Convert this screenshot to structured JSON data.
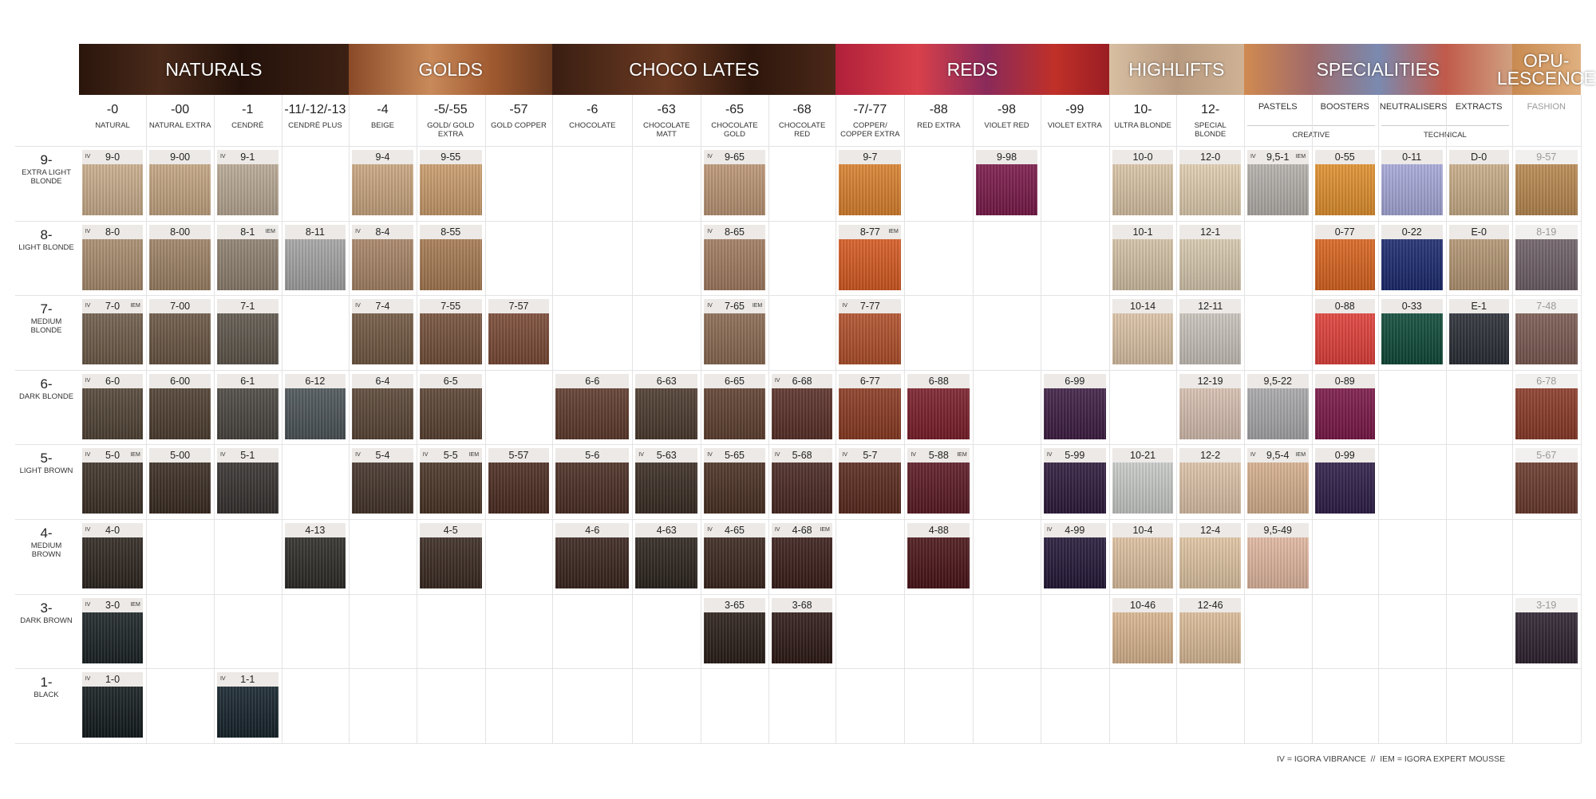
{
  "groups": [
    {
      "name": "NATURALS",
      "columns": [
        {
          "code": "-0",
          "name": "NATURAL"
        },
        {
          "code": "-00",
          "name": "NATURAL EXTRA"
        },
        {
          "code": "-1",
          "name": "CENDRÉ"
        },
        {
          "code": "-11/-12/-13",
          "name": "CENDRÉ PLUS"
        }
      ]
    },
    {
      "name": "GOLDS",
      "columns": [
        {
          "code": "-4",
          "name": "BEIGE"
        },
        {
          "code": "-5/-55",
          "name": "GOLD/ GOLD EXTRA"
        },
        {
          "code": "-57",
          "name": "GOLD COPPER"
        }
      ]
    },
    {
      "name": "CHOCO LATES",
      "columns": [
        {
          "code": "-6",
          "name": "CHOCOLATE"
        },
        {
          "code": "-63",
          "name": "CHOCOLATE MATT"
        },
        {
          "code": "-65",
          "name": "CHOCOLATE GOLD"
        },
        {
          "code": "-68",
          "name": "CHOCOLATE RED"
        }
      ]
    },
    {
      "name": "REDS",
      "columns": [
        {
          "code": "-7/-77",
          "name": "COPPER/ COPPER EXTRA"
        },
        {
          "code": "-88",
          "name": "RED EXTRA"
        },
        {
          "code": "-98",
          "name": "VIOLET RED"
        },
        {
          "code": "-99",
          "name": "VIOLET EXTRA"
        }
      ]
    },
    {
      "name": "HIGHLIFTS",
      "columns": [
        {
          "code": "10-",
          "name": "ULTRA BLONDE"
        },
        {
          "code": "12-",
          "name": "SPECIAL BLONDE"
        }
      ]
    },
    {
      "name": "SPECIALITIES",
      "subgroups": [
        {
          "name": "CREATIVE",
          "columns": [
            {
              "name": "PASTELS"
            },
            {
              "name": "BOOSTERS"
            }
          ]
        },
        {
          "name": "TECHNICAL",
          "columns": [
            {
              "name": "NEUTRALISERS"
            },
            {
              "name": "EXTRACTS"
            }
          ]
        }
      ]
    },
    {
      "name": "OPU-LESCENCE",
      "columns": [
        {
          "name": "FASHION"
        }
      ]
    }
  ],
  "rows": [
    {
      "level": "9-",
      "name": "EXTRA LIGHT BLONDE",
      "cells": [
        {
          "label": "9-0",
          "tags": [
            "IV"
          ],
          "color": "#c9ad8c"
        },
        {
          "label": "9-00",
          "color": "#c4a582"
        },
        {
          "label": "9-1",
          "tags": [
            "IV"
          ],
          "color": "#b8a894"
        },
        null,
        {
          "label": "9-4",
          "color": "#c9a680"
        },
        {
          "label": "9-55",
          "color": "#c99c6c"
        },
        null,
        null,
        null,
        {
          "label": "9-65",
          "tags": [
            "IV"
          ],
          "color": "#bb9575"
        },
        null,
        {
          "label": "9-7",
          "color": "#d9812e"
        },
        null,
        {
          "label": "9-98",
          "color": "#7a1a4a"
        },
        null,
        {
          "label": "10-0",
          "color": "#d9c4a6"
        },
        {
          "label": "12-0",
          "color": "#e0cdb0"
        },
        {
          "label": "9,5-1",
          "tags": [
            "IV",
            "IEM"
          ],
          "color": "#b4b0ab"
        },
        {
          "label": "0-55",
          "color": "#e0902e"
        },
        {
          "label": "0-11",
          "color": "#a6a8d8"
        },
        {
          "label": "D-0",
          "color": "#c8ad88"
        },
        {
          "label": "9-57",
          "color": "#b88850"
        }
      ]
    },
    {
      "level": "8-",
      "name": "LIGHT BLONDE",
      "cells": [
        {
          "label": "8-0",
          "tags": [
            "IV"
          ],
          "color": "#a88c6e"
        },
        {
          "label": "8-00",
          "color": "#9e8266"
        },
        {
          "label": "8-1",
          "tags": [
            "IEM"
          ],
          "color": "#8e8070"
        },
        {
          "label": "8-11",
          "color": "#a4a4a4"
        },
        {
          "label": "8-4",
          "tags": [
            "IV"
          ],
          "color": "#a78466"
        },
        {
          "label": "8-55",
          "color": "#a67a52"
        },
        null,
        null,
        null,
        {
          "label": "8-65",
          "tags": [
            "IV"
          ],
          "color": "#a17b60"
        },
        null,
        {
          "label": "8-77",
          "tags": [
            "IEM"
          ],
          "color": "#d55a22"
        },
        null,
        null,
        null,
        {
          "label": "10-1",
          "color": "#d3c1a5"
        },
        {
          "label": "12-1",
          "color": "#d6c8ae"
        },
        null,
        {
          "label": "0-77",
          "color": "#d86420"
        },
        {
          "label": "0-22",
          "color": "#1c2a6e"
        },
        {
          "label": "E-0",
          "color": "#b49674"
        },
        {
          "label": "8-19",
          "color": "#6e6068"
        }
      ]
    },
    {
      "level": "7-",
      "name": "MEDIUM BLONDE",
      "cells": [
        {
          "label": "7-0",
          "tags": [
            "IV",
            "IEM"
          ],
          "color": "#6e5c4a"
        },
        {
          "label": "7-00",
          "color": "#6a5644"
        },
        {
          "label": "7-1",
          "color": "#5e564c"
        },
        null,
        {
          "label": "7-4",
          "tags": [
            "IV"
          ],
          "color": "#715842"
        },
        {
          "label": "7-55",
          "color": "#74503a"
        },
        {
          "label": "7-57",
          "color": "#7a4a36"
        },
        null,
        null,
        {
          "label": "7-65",
          "tags": [
            "IV",
            "IEM"
          ],
          "color": "#8a6a52"
        },
        null,
        {
          "label": "7-77",
          "tags": [
            "IV"
          ],
          "color": "#b0502a"
        },
        null,
        null,
        null,
        {
          "label": "10-14",
          "color": "#dbc3a6"
        },
        {
          "label": "12-11",
          "color": "#c8c2ba"
        },
        null,
        {
          "label": "0-88",
          "color": "#e0403a"
        },
        {
          "label": "0-33",
          "color": "#0f4a38"
        },
        {
          "label": "E-1",
          "color": "#2a2e36"
        },
        {
          "label": "7-48",
          "color": "#7a5a52"
        }
      ]
    },
    {
      "level": "6-",
      "name": "DARK BLONDE",
      "cells": [
        {
          "label": "6-0",
          "tags": [
            "IV"
          ],
          "color": "#524436"
        },
        {
          "label": "6-00",
          "color": "#4e3e30"
        },
        {
          "label": "6-1",
          "color": "#4a4640"
        },
        {
          "label": "6-12",
          "color": "#4c5458"
        },
        {
          "label": "6-4",
          "color": "#5a4636"
        },
        {
          "label": "6-5",
          "color": "#5a4232"
        },
        null,
        {
          "label": "6-6",
          "color": "#5e3a2c"
        },
        {
          "label": "6-63",
          "color": "#4c3a2e"
        },
        {
          "label": "6-65",
          "color": "#5e4030"
        },
        {
          "label": "6-68",
          "tags": [
            "IV"
          ],
          "color": "#5a3028"
        },
        {
          "label": "6-77",
          "color": "#8a3a22"
        },
        {
          "label": "6-88",
          "color": "#7a1e2a"
        },
        null,
        {
          "label": "6-99",
          "color": "#3e1e44"
        },
        null,
        {
          "label": "12-19",
          "color": "#d6bfb0"
        },
        {
          "label": "9,5-22",
          "color": "#a8a8aa"
        },
        {
          "label": "0-89",
          "color": "#7a1848"
        },
        null,
        null,
        {
          "label": "6-78",
          "color": "#8a3a28"
        }
      ]
    },
    {
      "level": "5-",
      "name": "LIGHT BROWN",
      "cells": [
        {
          "label": "5-0",
          "tags": [
            "IV",
            "IEM"
          ],
          "color": "#3e3228"
        },
        {
          "label": "5-00",
          "color": "#3a2c22"
        },
        {
          "label": "5-1",
          "tags": [
            "IV"
          ],
          "color": "#363230"
        },
        null,
        {
          "label": "5-4",
          "tags": [
            "IV"
          ],
          "color": "#44342a"
        },
        {
          "label": "5-5",
          "tags": [
            "IV",
            "IEM"
          ],
          "color": "#4a3426"
        },
        {
          "label": "5-57",
          "color": "#4c2c22"
        },
        {
          "label": "5-6",
          "color": "#4a2e24"
        },
        {
          "label": "5-63",
          "tags": [
            "IV"
          ],
          "color": "#3a2c24"
        },
        {
          "label": "5-65",
          "tags": [
            "IV"
          ],
          "color": "#4a3024"
        },
        {
          "label": "5-68",
          "tags": [
            "IV"
          ],
          "color": "#4a2822"
        },
        {
          "label": "5-7",
          "tags": [
            "IV"
          ],
          "color": "#5a2a1e"
        },
        {
          "label": "5-88",
          "tags": [
            "IV",
            "IEM"
          ],
          "color": "#5c1a24"
        },
        null,
        {
          "label": "5-99",
          "tags": [
            "IV"
          ],
          "color": "#2e1a3c"
        },
        {
          "label": "10-21",
          "color": "#c8cac8"
        },
        {
          "label": "12-2",
          "color": "#dcc2a8"
        },
        {
          "label": "9,5-4",
          "tags": [
            "IV",
            "IEM"
          ],
          "color": "#d6b08e"
        },
        {
          "label": "0-99",
          "color": "#2e1e48"
        },
        null,
        null,
        {
          "label": "5-67",
          "color": "#6a3a2c"
        }
      ]
    },
    {
      "level": "4-",
      "name": "MEDIUM BROWN",
      "cells": [
        {
          "label": "4-0",
          "tags": [
            "IV"
          ],
          "color": "#2e2620"
        },
        null,
        null,
        {
          "label": "4-13",
          "color": "#2e2c28"
        },
        null,
        {
          "label": "4-5",
          "color": "#3a2a22"
        },
        null,
        {
          "label": "4-6",
          "color": "#3a241e"
        },
        {
          "label": "4-63",
          "color": "#2c241e"
        },
        {
          "label": "4-65",
          "tags": [
            "IV"
          ],
          "color": "#3a261e"
        },
        {
          "label": "4-68",
          "tags": [
            "IV",
            "IEM"
          ],
          "color": "#3a1e1a"
        },
        null,
        {
          "label": "4-88",
          "color": "#4a1418"
        },
        null,
        {
          "label": "4-99",
          "tags": [
            "IV"
          ],
          "color": "#241838"
        },
        {
          "label": "10-4",
          "color": "#ddc0a0"
        },
        {
          "label": "12-4",
          "color": "#dfc4a2"
        },
        {
          "label": "9,5-49",
          "color": "#e0b7a0"
        },
        null,
        null,
        null,
        null
      ]
    },
    {
      "level": "3-",
      "name": "DARK BROWN",
      "cells": [
        {
          "label": "3-0",
          "tags": [
            "IV",
            "IEM"
          ],
          "color": "#1c2426"
        },
        null,
        null,
        null,
        null,
        null,
        null,
        null,
        null,
        {
          "label": "3-65",
          "color": "#2a1e18"
        },
        {
          "label": "3-68",
          "color": "#2e1a16"
        },
        null,
        null,
        null,
        null,
        {
          "label": "10-46",
          "color": "#d9b690"
        },
        {
          "label": "12-46",
          "color": "#dbbc98"
        },
        null,
        null,
        null,
        null,
        {
          "label": "3-19",
          "color": "#2e2230"
        }
      ]
    },
    {
      "level": "1-",
      "name": "BLACK",
      "cells": [
        {
          "label": "1-0",
          "tags": [
            "IV"
          ],
          "color": "#141c1e"
        },
        null,
        {
          "label": "1-1",
          "tags": [
            "IV"
          ],
          "color": "#16242c"
        },
        null,
        null,
        null,
        null,
        null,
        null,
        null,
        null,
        null,
        null,
        null,
        null,
        null,
        null,
        null,
        null,
        null,
        null,
        null
      ]
    }
  ],
  "legend": "IV = IGORA VIBRANCE  //  IEM = IGORA EXPERT MOUSSE"
}
